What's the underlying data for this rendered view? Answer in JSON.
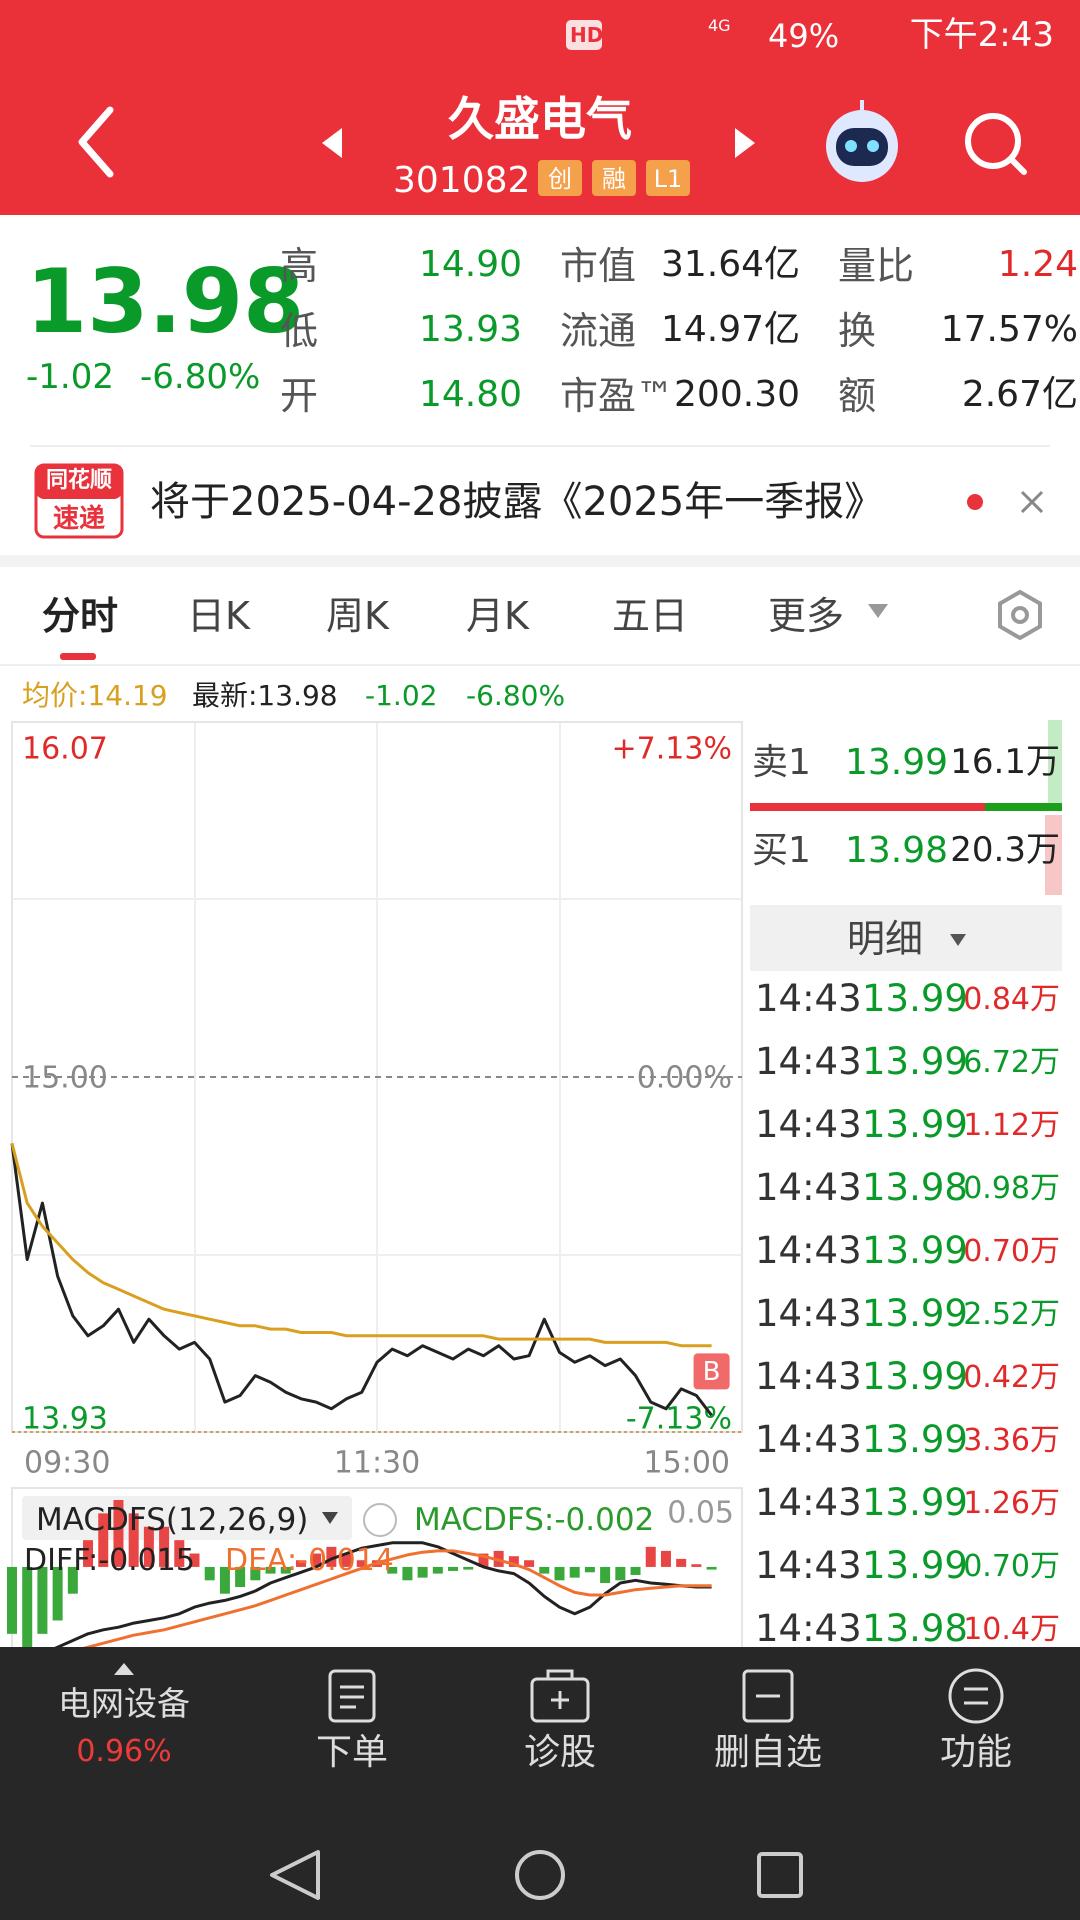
{
  "status_bar": {
    "hd": "HD",
    "network": "4G",
    "battery": "49%",
    "time": "下午2:43"
  },
  "header": {
    "title": "久盛电气",
    "code": "301082",
    "badges": [
      "创",
      "融",
      "L1"
    ]
  },
  "quote": {
    "price": "13.98",
    "change": "-1.02",
    "change_pct": "-6.80%",
    "stats": [
      [
        {
          "label": "高",
          "value": "14.90",
          "color": "#0a9a2a"
        },
        {
          "label": "市值",
          "value": "31.64亿",
          "color": "#222222"
        },
        {
          "label": "量比",
          "value": "1.24",
          "color": "#e02a2a"
        }
      ],
      [
        {
          "label": "低",
          "value": "13.93",
          "color": "#0a9a2a"
        },
        {
          "label": "流通",
          "value": "14.97亿",
          "color": "#222222"
        },
        {
          "label": "换",
          "value": "17.57%",
          "color": "#222222"
        }
      ],
      [
        {
          "label": "开",
          "value": "14.80",
          "color": "#0a9a2a"
        },
        {
          "label": "市盈™",
          "value": "200.30",
          "color": "#222222"
        },
        {
          "label": "额",
          "value": "2.67亿",
          "color": "#222222"
        }
      ]
    ]
  },
  "news": {
    "logo_top": "同花顺",
    "logo_bottom": "速递",
    "text": "将于2025-04-28披露《2025年一季报》"
  },
  "tabs": {
    "items": [
      "分时",
      "日K",
      "周K",
      "月K",
      "五日",
      "更多"
    ],
    "active": 0
  },
  "info_bar": {
    "avg": "均价:14.19",
    "latest": "最新:13.98",
    "change": "-1.02",
    "change_pct": "-6.80%"
  },
  "chart_data": [
    {
      "type": "line",
      "xticks": [
        "09:30",
        "11:30",
        "15:00"
      ],
      "ylim": [
        13.93,
        16.07
      ],
      "yticks": [
        16.07,
        {
          "value": 15,
          "label": "15.00"
        },
        13.93
      ],
      "y2lim": [
        -7.13,
        7.13
      ],
      "y2ticks": [
        {
          "value": 7.13,
          "label": "+7.13%"
        },
        {
          "value": 0,
          "label": "0.00%"
        },
        {
          "value": -7.13,
          "label": "-7.13%"
        }
      ],
      "series": [
        {
          "color": "#222222",
          "values": [
            14.8,
            14.45,
            14.62,
            14.4,
            14.28,
            14.22,
            14.25,
            14.3,
            14.2,
            14.27,
            14.22,
            14.18,
            14.2,
            14.15,
            14.02,
            14.04,
            14.1,
            14.08,
            14.05,
            14.03,
            14.02,
            14.0,
            14.03,
            14.05,
            14.14,
            14.18,
            14.16,
            14.19,
            14.17,
            14.15,
            14.18,
            14.16,
            14.19,
            14.15,
            14.16,
            14.27,
            14.17,
            14.14,
            14.16,
            14.13,
            14.15,
            14.1,
            14.02,
            14.0,
            14.06,
            14.04,
            13.98
          ]
        },
        {
          "color": "#d9a020",
          "values": [
            14.8,
            14.62,
            14.55,
            14.5,
            14.45,
            14.41,
            14.38,
            14.36,
            14.34,
            14.32,
            14.3,
            14.29,
            14.28,
            14.27,
            14.26,
            14.25,
            14.25,
            14.24,
            14.24,
            14.23,
            14.23,
            14.23,
            14.22,
            14.22,
            14.22,
            14.22,
            14.22,
            14.22,
            14.22,
            14.22,
            14.22,
            14.22,
            14.21,
            14.21,
            14.21,
            14.21,
            14.21,
            14.21,
            14.21,
            14.2,
            14.2,
            14.2,
            14.2,
            14.2,
            14.19,
            14.19,
            14.19
          ]
        }
      ],
      "marker": "B"
    },
    {
      "type": "macd",
      "title": "MACDFS(12,26,9)",
      "readouts": [
        "MACDFS:-0.002",
        "DIFF:-0.015",
        "DEA:-0.014"
      ],
      "ylim": [
        -0.08,
        0.05
      ],
      "yticks": [
        0.05
      ],
      "series": [
        {
          "color": "#222222",
          "values": [
            -0.07,
            -0.068,
            -0.065,
            -0.06,
            -0.055,
            -0.05,
            -0.047,
            -0.045,
            -0.042,
            -0.04,
            -0.038,
            -0.035,
            -0.03,
            -0.027,
            -0.025,
            -0.022,
            -0.018,
            -0.012,
            -0.008,
            -0.004,
            0.0,
            0.006,
            0.01,
            0.014,
            0.016,
            0.018,
            0.018,
            0.018,
            0.015,
            0.01,
            0.005,
            0.0,
            -0.003,
            -0.005,
            -0.012,
            -0.022,
            -0.03,
            -0.035,
            -0.03,
            -0.02,
            -0.012,
            -0.01,
            -0.012,
            -0.013,
            -0.014,
            -0.015,
            -0.015
          ]
        },
        {
          "color": "#f07030",
          "values": [
            -0.075,
            -0.072,
            -0.07,
            -0.067,
            -0.063,
            -0.06,
            -0.057,
            -0.054,
            -0.051,
            -0.049,
            -0.047,
            -0.044,
            -0.041,
            -0.038,
            -0.035,
            -0.032,
            -0.029,
            -0.025,
            -0.021,
            -0.017,
            -0.013,
            -0.009,
            -0.005,
            -0.001,
            0.003,
            0.006,
            0.009,
            0.011,
            0.012,
            0.012,
            0.01,
            0.008,
            0.005,
            0.002,
            -0.002,
            -0.008,
            -0.014,
            -0.019,
            -0.021,
            -0.021,
            -0.019,
            -0.017,
            -0.016,
            -0.015,
            -0.014,
            -0.014,
            -0.014
          ]
        }
      ],
      "histogram": {
        "up_color": "#e84545",
        "down_color": "#3aa83a",
        "values": [
          -0.05,
          -0.06,
          -0.05,
          -0.04,
          -0.02,
          0.02,
          0.04,
          0.05,
          0.04,
          0.03,
          0.03,
          0.02,
          0.01,
          -0.01,
          -0.02,
          -0.015,
          -0.01,
          -0.005,
          -0.005,
          0.005,
          0.01,
          0.015,
          0.01,
          0.005,
          0.005,
          -0.005,
          -0.01,
          -0.008,
          -0.005,
          -0.003,
          -0.002,
          0.01,
          0.012,
          0.008,
          0.005,
          -0.005,
          -0.01,
          -0.008,
          -0.004,
          -0.012,
          -0.01,
          -0.006,
          0.015,
          0.012,
          0.006,
          0.002,
          -0.002
        ]
      }
    }
  ],
  "order_book": {
    "ask": {
      "label": "卖1",
      "price": "13.99",
      "volume": "16.1万"
    },
    "bid": {
      "label": "买1",
      "price": "13.98",
      "volume": "20.3万"
    }
  },
  "trades": {
    "title": "明细",
    "rows": [
      {
        "time": "14:43",
        "price": "13.99",
        "volume": "0.84万",
        "color": "#e02a2a"
      },
      {
        "time": "14:43",
        "price": "13.99",
        "volume": "6.72万",
        "color": "#0a9a2a"
      },
      {
        "time": "14:43",
        "price": "13.99",
        "volume": "1.12万",
        "color": "#e02a2a"
      },
      {
        "time": "14:43",
        "price": "13.98",
        "volume": "0.98万",
        "color": "#0a9a2a"
      },
      {
        "time": "14:43",
        "price": "13.99",
        "volume": "0.70万",
        "color": "#e02a2a"
      },
      {
        "time": "14:43",
        "price": "13.99",
        "volume": "2.52万",
        "color": "#0a9a2a"
      },
      {
        "time": "14:43",
        "price": "13.99",
        "volume": "0.42万",
        "color": "#e02a2a"
      },
      {
        "time": "14:43",
        "price": "13.99",
        "volume": "3.36万",
        "color": "#e02a2a"
      },
      {
        "time": "14:43",
        "price": "13.99",
        "volume": "1.26万",
        "color": "#e02a2a"
      },
      {
        "time": "14:43",
        "price": "13.99",
        "volume": "0.70万",
        "color": "#0a9a2a"
      },
      {
        "time": "14:43",
        "price": "13.98",
        "volume": "10.4万",
        "color": "#e02a2a"
      }
    ]
  },
  "bottom_nav": {
    "sector": "电网设备",
    "sector_change": "0.96%",
    "buttons": [
      "下单",
      "诊股",
      "删自选",
      "功能"
    ]
  }
}
